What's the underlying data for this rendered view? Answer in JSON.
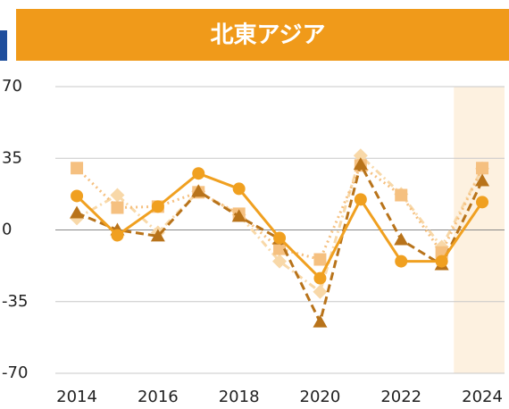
{
  "chart_data": {
    "type": "line",
    "title": "北東アジア",
    "x": [
      2014,
      2015,
      2016,
      2017,
      2018,
      2019,
      2020,
      2021,
      2022,
      2023,
      2024
    ],
    "xlim": [
      2013.47,
      2024.55
    ],
    "xticks": [
      2014,
      2016,
      2018,
      2020,
      2022,
      2024
    ],
    "ylim": [
      -70,
      70
    ],
    "yticks": [
      70,
      35,
      0,
      -35,
      -70
    ],
    "grid": true,
    "highlight": [
      2023.3,
      2024.55
    ],
    "series": [
      {
        "color": "#f0a020",
        "dash": "solid",
        "marker": "circle",
        "values": [
          16.6,
          -2.6,
          11.4,
          27.6,
          20.1,
          -3.9,
          -23.6,
          14.9,
          -15.3,
          -15.3,
          13.6
        ]
      },
      {
        "color": "#b8731a",
        "dash": "dashed",
        "marker": "triangle",
        "values": [
          8.3,
          0,
          -3,
          18.8,
          6.6,
          -4.4,
          -45,
          32,
          -4.8,
          -17,
          24
        ]
      },
      {
        "color": "#f5c080",
        "dash": "dotted",
        "marker": "square",
        "values": [
          30.2,
          10.9,
          11.4,
          18.4,
          7.9,
          -9.2,
          -14.4,
          31.5,
          17,
          -11,
          30.2
        ]
      },
      {
        "color": "#f8d8a8",
        "dash": "dashdot",
        "marker": "diamond",
        "values": [
          5.7,
          17,
          -1.3,
          18.8,
          7.4,
          -15.3,
          -30.2,
          36.3,
          17.5,
          -8.3,
          30
        ]
      }
    ]
  }
}
